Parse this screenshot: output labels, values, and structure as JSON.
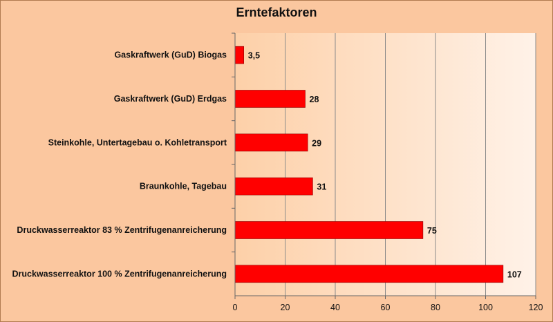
{
  "chart_data": {
    "type": "bar",
    "orientation": "horizontal",
    "title": "Erntefaktoren",
    "categories": [
      "Gaskraftwerk (GuD) Biogas",
      "Gaskraftwerk (GuD) Erdgas",
      "Steinkohle, Untertagebau o. Kohletransport",
      "Braunkohle, Tagebau",
      "Druckwasserreaktor 83 % Zentrifugenanreicherung",
      "Druckwasserreaktor 100 % Zentrifugenanreicherung"
    ],
    "values": [
      3.5,
      28,
      29,
      31,
      75,
      107
    ],
    "value_labels": [
      "3,5",
      "28",
      "29",
      "31",
      "75",
      "107"
    ],
    "xlim": [
      0,
      120
    ],
    "xticks": [
      0,
      20,
      40,
      60,
      80,
      100,
      120
    ],
    "grid": true,
    "colors": {
      "bar": "#ff0000",
      "bar_edge": "#8b0000",
      "frame_bg": "#fbc79f",
      "plot_bg_start": "#fdd0a8",
      "plot_bg_end": "#fff2e8",
      "gridline": "#8a8a8a"
    }
  }
}
